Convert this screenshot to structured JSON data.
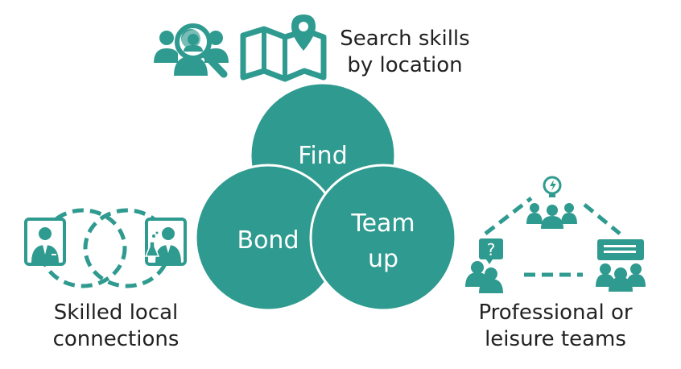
{
  "colors": {
    "teal": "#2f9a8f",
    "circle_stroke": "#ffffff",
    "dash": "#2f9a8f",
    "text": "#222222"
  },
  "top": {
    "caption_line1": "Search skills",
    "caption_line2": "by location",
    "icons": [
      "people-search-icon",
      "map-pin-icon"
    ]
  },
  "venn": {
    "find_label": "Find",
    "bond_label": "Bond",
    "team_line1": "Team",
    "team_line2": "up"
  },
  "left": {
    "caption_line1": "Skilled local",
    "caption_line2": "connections",
    "icons": [
      "businessman-icon",
      "scientist-icon"
    ]
  },
  "right": {
    "caption_line1": "Professional or",
    "caption_line2": "leisure teams",
    "icons": [
      "idea-team-icon",
      "question-person-icon",
      "presentation-team-icon"
    ]
  }
}
